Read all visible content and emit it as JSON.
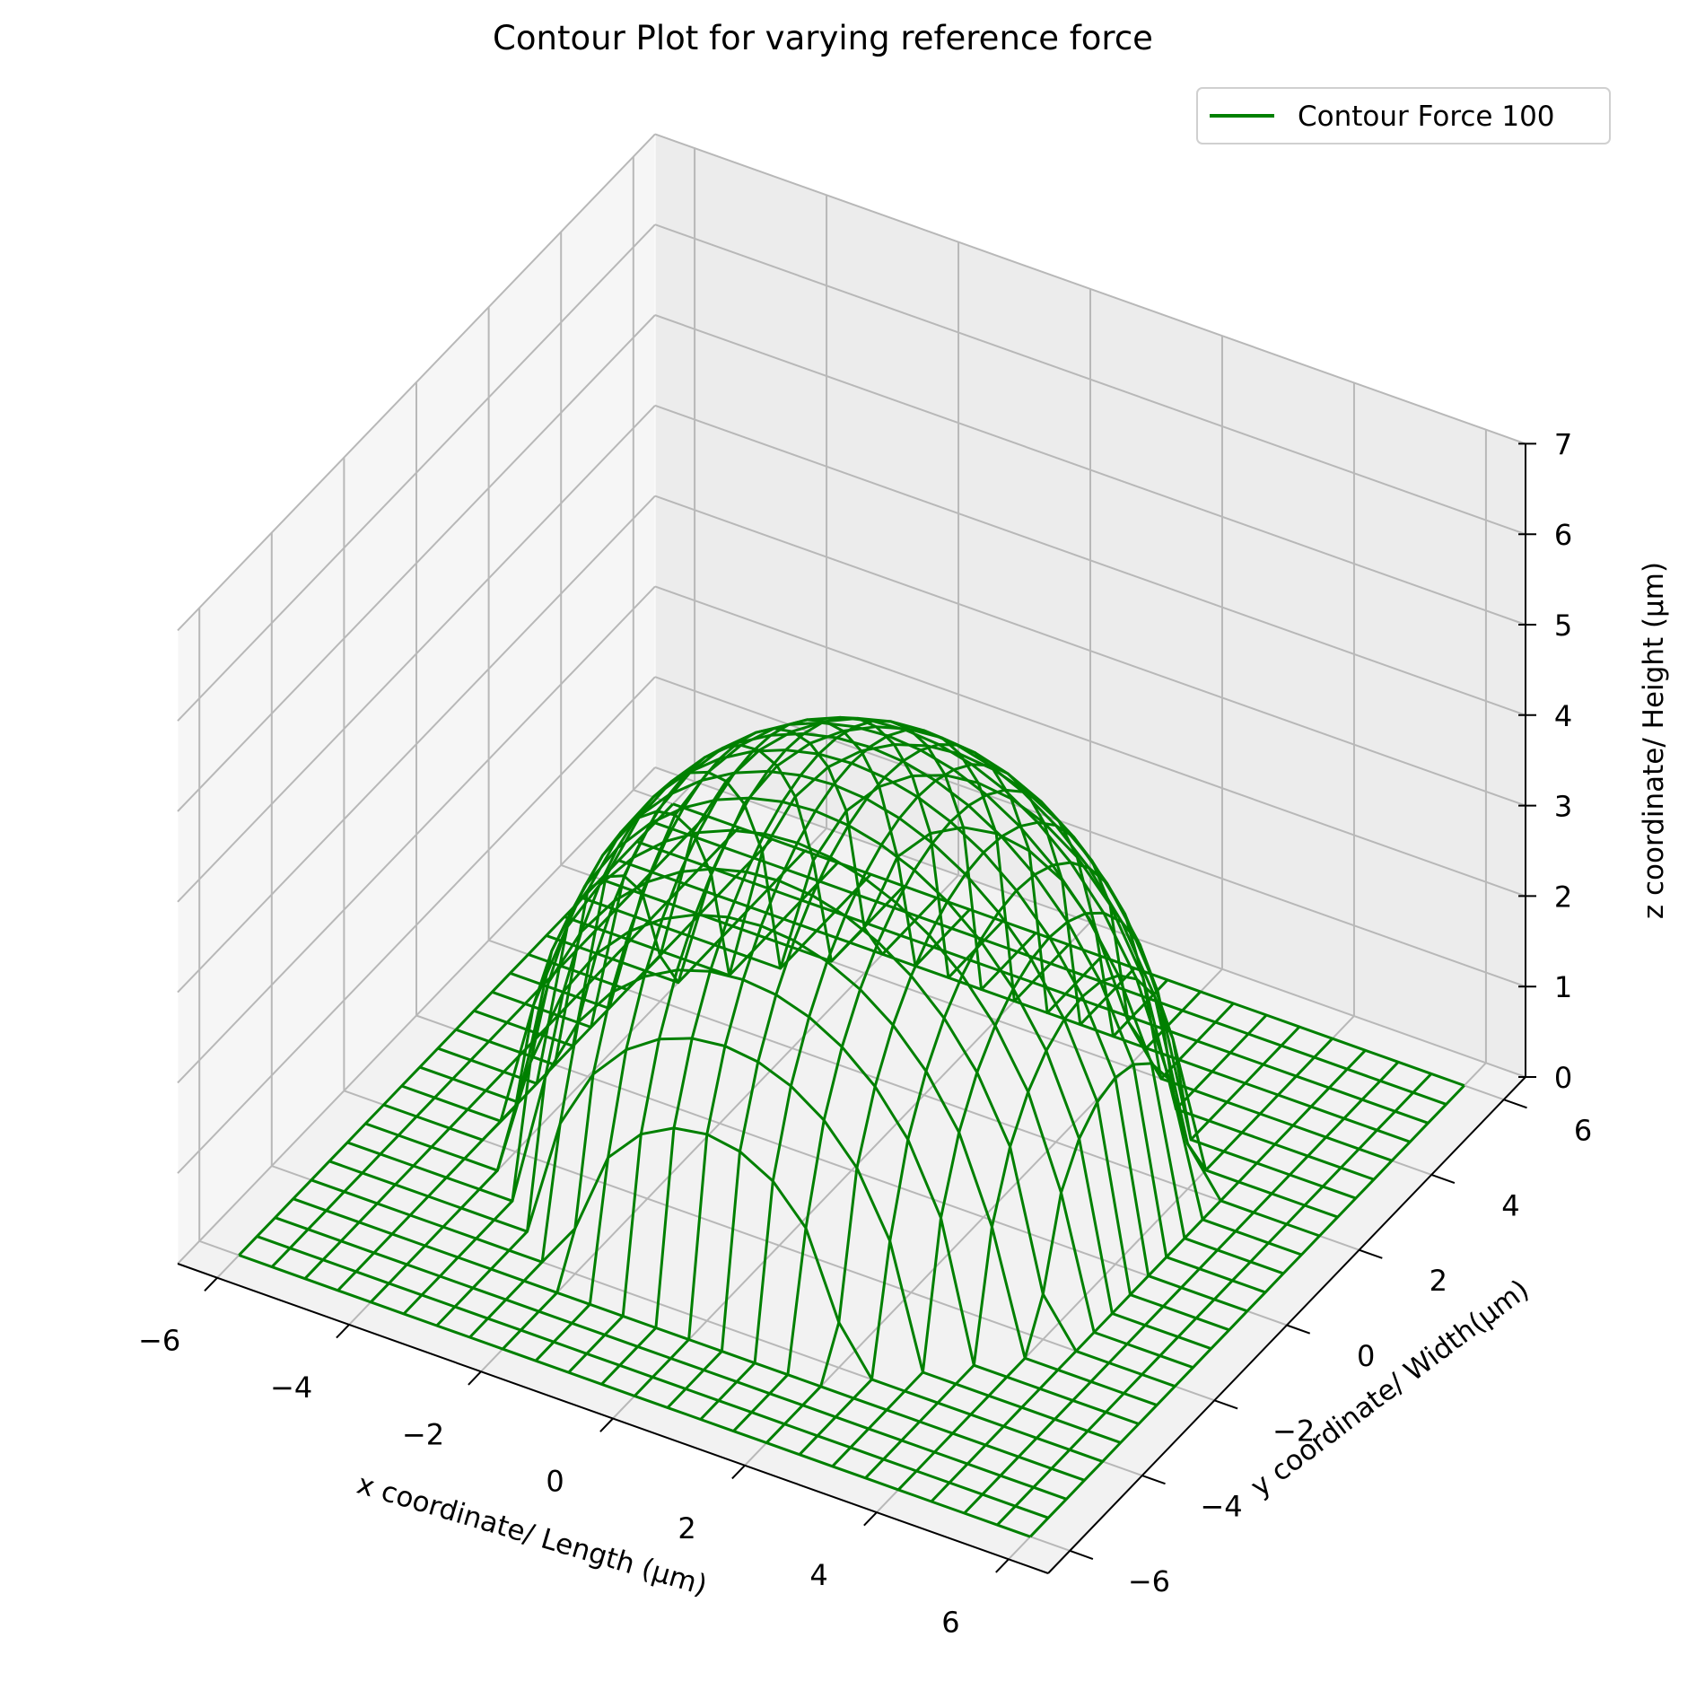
{
  "chart_data": {
    "type": "surface-wireframe-3d",
    "title": "Contour Plot for varying reference force",
    "xlabel": "x coordinate/ Length (μm)",
    "ylabel": "y coordinate/ Width(μm)",
    "zlabel": "z coordinate/ Height (μm)",
    "xlim": [
      -6.6,
      6.6
    ],
    "ylim": [
      -6.6,
      6.6
    ],
    "zlim": [
      0,
      7
    ],
    "x_ticks": [
      -6,
      -4,
      -2,
      0,
      2,
      4,
      6
    ],
    "y_ticks": [
      -6,
      -4,
      -2,
      0,
      2,
      4,
      6
    ],
    "z_ticks": [
      0,
      1,
      2,
      3,
      4,
      5,
      6,
      7
    ],
    "x_tick_labels": [
      "−6",
      "−4",
      "−2",
      "0",
      "2",
      "4",
      "6"
    ],
    "y_tick_labels": [
      "−6",
      "−4",
      "−2",
      "0",
      "2",
      "4",
      "6"
    ],
    "z_tick_labels": [
      "0",
      "1",
      "2",
      "3",
      "4",
      "5",
      "6",
      "7"
    ],
    "grid": true,
    "legend_position": "upper-right",
    "series": [
      {
        "name": "Contour Force 100",
        "color": "#008000",
        "surface": "hemispherical dome centred at origin, z = sqrt(R^2 - x^2 - y^2) inside radius, 0 outside",
        "dome_radius": 4.5,
        "peak_height": 4.5,
        "grid_x": [
          -6,
          -5.5,
          -5,
          -4.5,
          -4,
          -3.5,
          -3,
          -2.5,
          -2,
          -1.5,
          -1,
          -0.5,
          0,
          0.5,
          1,
          1.5,
          2,
          2.5,
          3,
          3.5,
          4,
          4.5,
          5,
          5.5,
          6
        ],
        "grid_y": [
          -6,
          -5.5,
          -5,
          -4.5,
          -4,
          -3.5,
          -3,
          -2.5,
          -2,
          -1.5,
          -1,
          -0.5,
          0,
          0.5,
          1,
          1.5,
          2,
          2.5,
          3,
          3.5,
          4,
          4.5,
          5,
          5.5,
          6
        ]
      }
    ]
  }
}
